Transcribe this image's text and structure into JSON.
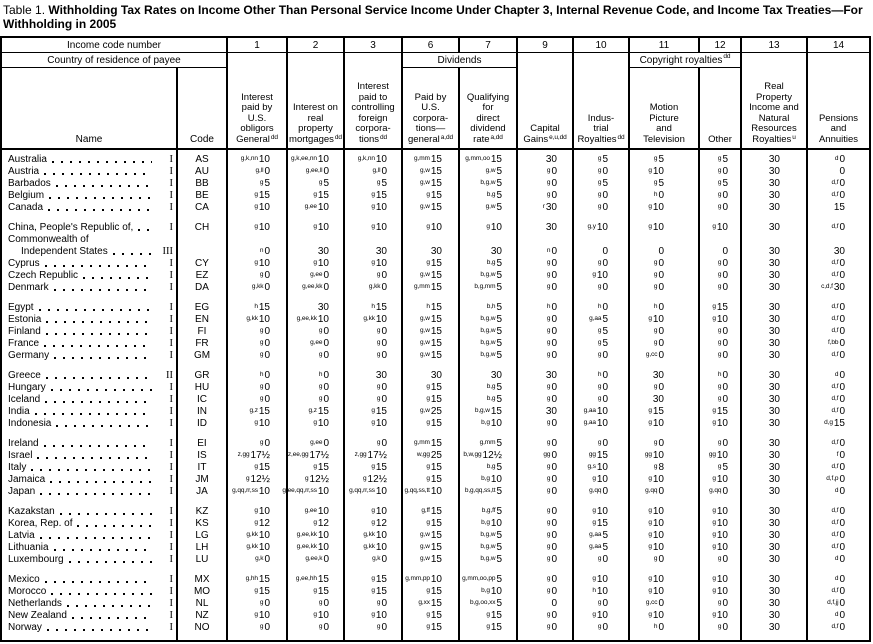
{
  "title": {
    "prefix": "Table 1.",
    "text": "Withholding Tax Rates on Income Other Than Personal Service Income Under Chapter 3, Internal Revenue Code, and Income Tax Treaties—For Withholding in 2005"
  },
  "header": {
    "income_code_label": "Income code number",
    "codes": [
      "1",
      "2",
      "3",
      "6",
      "7",
      "9",
      "10",
      "11",
      "12",
      "13",
      "14"
    ],
    "country_label": "Country of residence of payee",
    "name_label": "Name",
    "code_label": "Code",
    "dividends_label": "Dividends",
    "copyright_label": "Copyright royalties",
    "copyright_sup": "dd",
    "columns": [
      {
        "lines": [
          "Interest",
          "paid by",
          "U.S.",
          "obligors",
          "General"
        ],
        "sup": "dd"
      },
      {
        "lines": [
          "Interest on",
          "real",
          "property",
          "mortgages"
        ],
        "sup": "dd"
      },
      {
        "lines": [
          "Interest",
          "paid to",
          "controlling",
          "foreign",
          "corpora-",
          "tions"
        ],
        "sup": "dd"
      },
      {
        "lines": [
          "Paid by",
          "U.S.",
          "corpora-",
          "tions—",
          "general"
        ],
        "sup": "a,dd"
      },
      {
        "lines": [
          "Qualifying",
          "for",
          "direct",
          "dividend",
          "rate"
        ],
        "sup": "a,dd"
      },
      {
        "lines": [
          "Capital",
          "Gains"
        ],
        "sup": "e,u,dd"
      },
      {
        "lines": [
          "Indus-",
          "trial",
          "Royalties"
        ],
        "sup": "dd"
      },
      {
        "lines": [
          "Motion",
          "Picture",
          "and",
          "Television"
        ],
        "sup": ""
      },
      {
        "lines": [
          "Other"
        ],
        "sup": ""
      },
      {
        "lines": [
          "Real",
          "Property",
          "Income and",
          "Natural",
          "Resources",
          "Royalties"
        ],
        "sup": "u"
      },
      {
        "lines": [
          "Pensions",
          "and",
          "Annuities"
        ],
        "sup": ""
      }
    ]
  },
  "groups": [
    [
      {
        "name": "Australia",
        "cls": "I",
        "code": "AS",
        "v": [
          "g,k,nn|10",
          "g,k,ee,nn|10",
          "g,k,nn|10",
          "g,mm|15",
          "g,mm,oo|15",
          "|30",
          "g|5",
          "g|5",
          "g|5",
          "|30",
          "d|0"
        ]
      },
      {
        "name": "Austria",
        "cls": "I",
        "code": "AU",
        "v": [
          "g,ll|0",
          "g,ee,ll|0",
          "g,ll|0",
          "g,w|15",
          "g,w|5",
          "g|0",
          "g|0",
          "g|10",
          "g|0",
          "|30",
          "|0"
        ]
      },
      {
        "name": "Barbados",
        "cls": "I",
        "code": "BB",
        "v": [
          "g|5",
          "g|5",
          "g|5",
          "g,w|15",
          "b,g,w|5",
          "g|0",
          "g|5",
          "g|5",
          "g|5",
          "|30",
          "d,f|0"
        ]
      },
      {
        "name": "Belgium",
        "cls": "I",
        "code": "BE",
        "v": [
          "g|15",
          "g|15",
          "g|15",
          "g|15",
          "b,g|5",
          "g|0",
          "g|0",
          "h|0",
          "g|0",
          "|30",
          "d,f|0"
        ]
      },
      {
        "name": "Canada",
        "cls": "I",
        "code": "CA",
        "v": [
          "g|10",
          "g,ee|10",
          "g|10",
          "g,w|15",
          "g,w|5",
          "r|30",
          "g|0",
          "g|10",
          "g|0",
          "|30",
          "|15"
        ]
      }
    ],
    [
      {
        "name": "China, People's Republic of,",
        "cls": "I",
        "code": "CH",
        "v": [
          "g|10",
          "g|10",
          "g|10",
          "g|10",
          "g|10",
          "|30",
          "g,y|10",
          "g|10",
          "g|10",
          "|30",
          "d,f|0"
        ]
      },
      {
        "name": "Commonwealth of",
        "name2": "Independent States",
        "cls": "III",
        "code": "",
        "v": [
          "n|0",
          "|30",
          "|30",
          "|30",
          "|30",
          "n|0",
          "|0",
          "|0",
          "|0",
          "|30",
          "|30"
        ]
      },
      {
        "name": "Cyprus",
        "cls": "I",
        "code": "CY",
        "v": [
          "g|10",
          "g|10",
          "g|10",
          "g|15",
          "b,g|5",
          "g|0",
          "g|0",
          "g|0",
          "g|0",
          "|30",
          "d,f|0"
        ]
      },
      {
        "name": "Czech Republic",
        "cls": "I",
        "code": "EZ",
        "v": [
          "g|0",
          "g,ee|0",
          "g|0",
          "g,w|15",
          "b,g,w|5",
          "g|0",
          "g|10",
          "g|0",
          "g|0",
          "|30",
          "d,f|0"
        ]
      },
      {
        "name": "Denmark",
        "cls": "I",
        "code": "DA",
        "v": [
          "g,kk|0",
          "g,ee,kk|0",
          "g,kk|0",
          "g,mm|15",
          "b,g,mm|5",
          "g|0",
          "g|0",
          "g|0",
          "g|0",
          "|30",
          "c,d,f|30"
        ]
      }
    ],
    [
      {
        "name": "Egypt",
        "cls": "I",
        "code": "EG",
        "v": [
          "h|15",
          "|30",
          "h|15",
          "h|15",
          "b,h|5",
          "h|0",
          "h|0",
          "h|0",
          "g|15",
          "|30",
          "d,f|0"
        ]
      },
      {
        "name": "Estonia",
        "cls": "I",
        "code": "EN",
        "v": [
          "g,kk|10",
          "g,ee,kk|10",
          "g,kk|10",
          "g,w|15",
          "b,g,w|5",
          "g|0",
          "g,aa|5",
          "g|10",
          "g|10",
          "|30",
          "d,f|0"
        ]
      },
      {
        "name": "Finland",
        "cls": "I",
        "code": "FI",
        "v": [
          "g|0",
          "g|0",
          "g|0",
          "g,w|15",
          "b,g,w|5",
          "g|0",
          "g|5",
          "g|0",
          "g|0",
          "|30",
          "d,f|0"
        ]
      },
      {
        "name": "France",
        "cls": "I",
        "code": "FR",
        "v": [
          "g|0",
          "g,ee|0",
          "g|0",
          "g,w|15",
          "b,g,w|5",
          "g|0",
          "g|5",
          "g|0",
          "g|0",
          "|30",
          "f,bb|0"
        ]
      },
      {
        "name": "Germany",
        "cls": "I",
        "code": "GM",
        "v": [
          "g|0",
          "g|0",
          "g|0",
          "g,w|15",
          "b,g,w|5",
          "g|0",
          "g|0",
          "g,cc|0",
          "g|0",
          "|30",
          "d,f|0"
        ]
      }
    ],
    [
      {
        "name": "Greece",
        "cls": "II",
        "code": "GR",
        "v": [
          "h|0",
          "h|0",
          "|30",
          "|30",
          "|30",
          "|30",
          "h|0",
          "|30",
          "h|0",
          "|30",
          "d|0"
        ]
      },
      {
        "name": "Hungary",
        "cls": "I",
        "code": "HU",
        "v": [
          "g|0",
          "g|0",
          "g|0",
          "g|15",
          "b,g|5",
          "g|0",
          "g|0",
          "g|0",
          "g|0",
          "|30",
          "d,f|0"
        ]
      },
      {
        "name": "Iceland",
        "cls": "I",
        "code": "IC",
        "v": [
          "g|0",
          "g|0",
          "g|0",
          "g|15",
          "b,g|5",
          "g|0",
          "g|0",
          "|30",
          "g|0",
          "|30",
          "d,f|0"
        ]
      },
      {
        "name": "India",
        "cls": "I",
        "code": "IN",
        "v": [
          "g,z|15",
          "g,z|15",
          "g|15",
          "g,w|25",
          "b,g,w|15",
          "|30",
          "g,aa|10",
          "g|15",
          "g|15",
          "|30",
          "d,f|0"
        ]
      },
      {
        "name": "Indonesia",
        "cls": "I",
        "code": "ID",
        "v": [
          "g|10",
          "g|10",
          "g|10",
          "g|15",
          "b,g|10",
          "g|0",
          "g,aa|10",
          "g|10",
          "g|10",
          "|30",
          "d,g|15"
        ]
      }
    ],
    [
      {
        "name": "Ireland",
        "cls": "I",
        "code": "EI",
        "v": [
          "g|0",
          "g,ee|0",
          "g|0",
          "g,mm|15",
          "g,mm|5",
          "g|0",
          "g|0",
          "g|0",
          "g|0",
          "|30",
          "d,f|0"
        ]
      },
      {
        "name": "Israel",
        "cls": "I",
        "code": "IS",
        "v": [
          "z,gg|17½",
          "z,ee,gg|17½",
          "z,gg|17½",
          "w,gg|25",
          "b,w,gg|12½",
          "gg|0",
          "gg|15",
          "gg|10",
          "gg|10",
          "|30",
          "f|0"
        ]
      },
      {
        "name": "Italy",
        "cls": "I",
        "code": "IT",
        "v": [
          "g|15",
          "g|15",
          "g|15",
          "g|15",
          "b,g|5",
          "g|0",
          "g,s|10",
          "g|8",
          "g|5",
          "|30",
          "d,f|0"
        ]
      },
      {
        "name": "Jamaica",
        "cls": "I",
        "code": "JM",
        "v": [
          "g|12½",
          "g|12½",
          "g|12½",
          "g|15",
          "b,g|10",
          "g|0",
          "g|10",
          "g|10",
          "g|10",
          "|30",
          "d,f,p|0"
        ]
      },
      {
        "name": "Japan",
        "cls": "I",
        "code": "JA",
        "v": [
          "g,qq,rr,ss|10",
          "g,ee,qq,rr,ss|10",
          "g,qq,rr,ss|10",
          "g,qq,ss,tt|10",
          "b,g,qq,ss,tt|5",
          "g|0",
          "g,qq|0",
          "g,qq|0",
          "g,qq|0",
          "|30",
          "d|0"
        ]
      }
    ],
    [
      {
        "name": "Kazakstan",
        "cls": "I",
        "code": "KZ",
        "v": [
          "g|10",
          "g,ee|10",
          "g|10",
          "g,ff|15",
          "b,g,ff|5",
          "g|0",
          "g|10",
          "g|10",
          "g|10",
          "|30",
          "d,f|0"
        ]
      },
      {
        "name": "Korea, Rep. of",
        "cls": "I",
        "code": "KS",
        "v": [
          "g|12",
          "g|12",
          "g|12",
          "g|15",
          "b,g|10",
          "g|0",
          "g|15",
          "g|10",
          "g|10",
          "|30",
          "d,f|0"
        ]
      },
      {
        "name": "Latvia",
        "cls": "I",
        "code": "LG",
        "v": [
          "g,kk|10",
          "g,ee,kk|10",
          "g,kk|10",
          "g,w|15",
          "b,g,w|5",
          "g|0",
          "g,aa|5",
          "g|10",
          "g|10",
          "|30",
          "d,f|0"
        ]
      },
      {
        "name": "Lithuania",
        "cls": "I",
        "code": "LH",
        "v": [
          "g,kk|10",
          "g,ee,kk|10",
          "g,kk|10",
          "g,w|15",
          "b,g,w|5",
          "g|0",
          "g,aa|5",
          "g|10",
          "g|10",
          "|30",
          "d,f|0"
        ]
      },
      {
        "name": "Luxembourg",
        "cls": "I",
        "code": "LU",
        "v": [
          "g,k|0",
          "g,ee,k|0",
          "g,k|0",
          "g,w|15",
          "b,g,w|5",
          "g|0",
          "g|0",
          "g|0",
          "g|0",
          "|30",
          "d|0"
        ]
      }
    ],
    [
      {
        "name": "Mexico",
        "cls": "I",
        "code": "MX",
        "v": [
          "g,hh|15",
          "g,ee,hh|15",
          "g|15",
          "g,mm,pp|10",
          "g,mm,oo,pp|5",
          "g|0",
          "g|10",
          "g|10",
          "g|10",
          "|30",
          "d|0"
        ]
      },
      {
        "name": "Morocco",
        "cls": "I",
        "code": "MO",
        "v": [
          "g|15",
          "g|15",
          "g|15",
          "g|15",
          "b,g|10",
          "g|0",
          "h|10",
          "g|10",
          "g|10",
          "|30",
          "d,f|0"
        ]
      },
      {
        "name": "Netherlands",
        "cls": "I",
        "code": "NL",
        "v": [
          "g|0",
          "g|0",
          "g|0",
          "g,xx|15",
          "b,g,oo,xx|5",
          "|0",
          "g|0",
          "g,cc|0",
          "g|0",
          "|30",
          "d,f,jj|0"
        ]
      },
      {
        "name": "New Zealand",
        "cls": "I",
        "code": "NZ",
        "v": [
          "g|10",
          "g|10",
          "g|10",
          "g|15",
          "g|15",
          "g|0",
          "g|10",
          "g|10",
          "g|10",
          "|30",
          "d|0"
        ]
      },
      {
        "name": "Norway",
        "cls": "I",
        "code": "NO",
        "v": [
          "g|0",
          "g|0",
          "g|0",
          "g|15",
          "g|15",
          "g|0",
          "g|0",
          "h|0",
          "g|0",
          "|30",
          "d,f|0"
        ]
      }
    ]
  ]
}
